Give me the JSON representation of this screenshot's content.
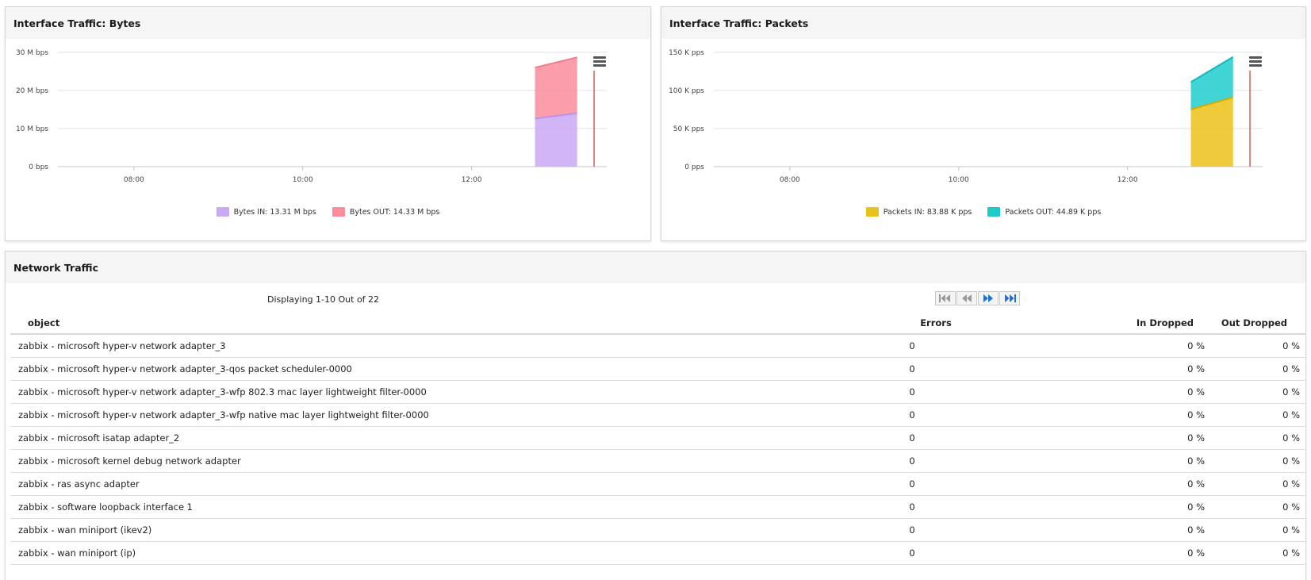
{
  "bytes_panel": {
    "title": "Interface Traffic: Bytes",
    "colors": {
      "in": "#c9a8f5",
      "in_line": "#b994ee",
      "out": "#fc8c9c",
      "out_line": "#f47b8c",
      "marker": "#c0392b"
    },
    "legend": [
      {
        "label": "Bytes IN: 13.31 M bps",
        "color": "#c9a8f5"
      },
      {
        "label": "Bytes OUT: 14.33 M bps",
        "color": "#fc8c9c"
      }
    ]
  },
  "packets_panel": {
    "title": "Interface Traffic: Packets",
    "colors": {
      "in": "#ecc21a",
      "in_line": "#d6ab00",
      "out": "#20cccc",
      "out_line": "#10b8c0",
      "marker": "#c0392b"
    },
    "legend": [
      {
        "label": "Packets IN: 83.88 K pps",
        "color": "#e8c21a"
      },
      {
        "label": "Packets OUT: 44.89 K pps",
        "color": "#1ccaca"
      }
    ]
  },
  "chart_data": [
    {
      "type": "area",
      "stacked": true,
      "title": "Interface Traffic: Bytes",
      "y_ticks": [
        "0 bps",
        "10 M bps",
        "20 M bps",
        "30 M bps"
      ],
      "ylim": [
        0,
        30
      ],
      "x_ticks": [
        "08:00",
        "10:00",
        "12:00"
      ],
      "x_tick_hours": [
        8,
        10,
        12
      ],
      "xlim_hours": [
        7.1,
        13.6
      ],
      "marker_hour": 13.45,
      "x": [
        12.75,
        13.25
      ],
      "series": [
        {
          "name": "Bytes IN: 13.31 M bps",
          "values": [
            12.6,
            14.0
          ]
        },
        {
          "name": "Bytes OUT: 14.33 M bps",
          "values": [
            13.4,
            14.7
          ]
        }
      ],
      "legend_position": "bottom",
      "grid": true
    },
    {
      "type": "area",
      "stacked": true,
      "title": "Interface Traffic: Packets",
      "y_ticks": [
        "0 pps",
        "50 K pps",
        "100 K pps",
        "150 K pps"
      ],
      "ylim": [
        0,
        150
      ],
      "x_ticks": [
        "08:00",
        "10:00",
        "12:00"
      ],
      "x_tick_hours": [
        8,
        10,
        12
      ],
      "xlim_hours": [
        7.1,
        13.6
      ],
      "marker_hour": 13.45,
      "x": [
        12.75,
        13.25
      ],
      "series": [
        {
          "name": "Packets IN: 83.88 K pps",
          "values": [
            75,
            91
          ]
        },
        {
          "name": "Packets OUT: 44.89 K pps",
          "values": [
            36,
            53
          ]
        }
      ],
      "legend_position": "bottom",
      "grid": true
    }
  ],
  "network_panel": {
    "title": "Network Traffic",
    "displaying": "Displaying 1-10 Out of 22",
    "columns": [
      "object",
      "Errors",
      "In Dropped",
      "Out Dropped"
    ],
    "rows": [
      {
        "object": "zabbix - microsoft hyper-v network adapter_3",
        "errors": "0",
        "in_dropped": "0 %",
        "out_dropped": "0 %"
      },
      {
        "object": "zabbix - microsoft hyper-v network adapter_3-qos packet scheduler-0000",
        "errors": "0",
        "in_dropped": "0 %",
        "out_dropped": "0 %"
      },
      {
        "object": "zabbix - microsoft hyper-v network adapter_3-wfp 802.3 mac layer lightweight filter-0000",
        "errors": "0",
        "in_dropped": "0 %",
        "out_dropped": "0 %"
      },
      {
        "object": "zabbix - microsoft hyper-v network adapter_3-wfp native mac layer lightweight filter-0000",
        "errors": "0",
        "in_dropped": "0 %",
        "out_dropped": "0 %"
      },
      {
        "object": "zabbix - microsoft isatap adapter_2",
        "errors": "0",
        "in_dropped": "0 %",
        "out_dropped": "0 %"
      },
      {
        "object": "zabbix - microsoft kernel debug network adapter",
        "errors": "0",
        "in_dropped": "0 %",
        "out_dropped": "0 %"
      },
      {
        "object": "zabbix - ras async adapter",
        "errors": "0",
        "in_dropped": "0 %",
        "out_dropped": "0 %"
      },
      {
        "object": "zabbix - software loopback interface 1",
        "errors": "0",
        "in_dropped": "0 %",
        "out_dropped": "0 %"
      },
      {
        "object": "zabbix - wan miniport (ikev2)",
        "errors": "0",
        "in_dropped": "0 %",
        "out_dropped": "0 %"
      },
      {
        "object": "zabbix - wan miniport (ip)",
        "errors": "0",
        "in_dropped": "0 %",
        "out_dropped": "0 %"
      }
    ],
    "pager_icons": [
      "first-page-icon",
      "previous-page-icon",
      "next-page-icon",
      "last-page-icon"
    ],
    "pager_colors": {
      "disabled": "#9a9a9a",
      "enabled": "#1e6fd0"
    }
  }
}
